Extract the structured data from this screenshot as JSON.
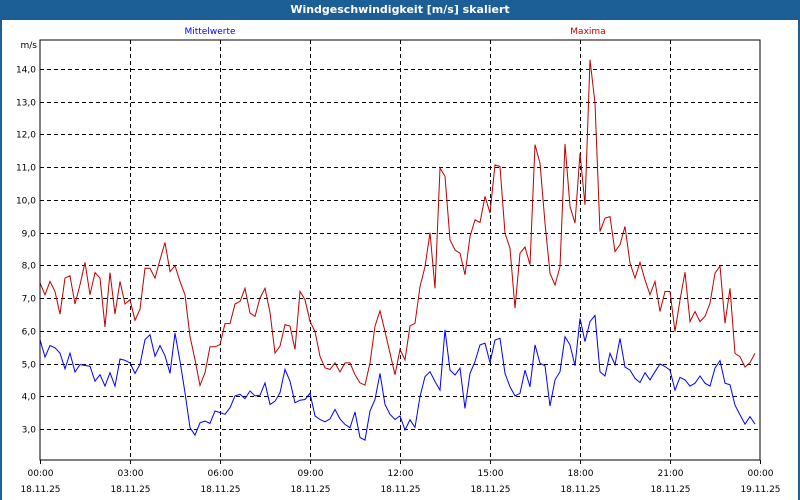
{
  "window": {
    "title": "Windgeschwindigkeit [m/s] skaliert"
  },
  "chart_data": {
    "type": "line",
    "title": "Windgeschwindigkeit [m/s] skaliert",
    "ylabel": "m/s",
    "ylim": [
      2.05,
      14.9
    ],
    "yticks": [
      "3,0",
      "4,0",
      "5,0",
      "6,0",
      "7,0",
      "8,0",
      "9,0",
      "10,0",
      "11,0",
      "12,0",
      "13,0",
      "14,0"
    ],
    "ytick_values": [
      3,
      4,
      5,
      6,
      7,
      8,
      9,
      10,
      11,
      12,
      13,
      14
    ],
    "xlim_hours": [
      0,
      24
    ],
    "xticks": [
      {
        "time": "00:00",
        "date": "18.11.25"
      },
      {
        "time": "03:00",
        "date": "18.11.25"
      },
      {
        "time": "06:00",
        "date": "18.11.25"
      },
      {
        "time": "09:00",
        "date": "18.11.25"
      },
      {
        "time": "12:00",
        "date": "18.11.25"
      },
      {
        "time": "15:00",
        "date": "18.11.25"
      },
      {
        "time": "18:00",
        "date": "18.11.25"
      },
      {
        "time": "21:00",
        "date": "18.11.25"
      },
      {
        "time": "00:00",
        "date": "19.11.25"
      }
    ],
    "grid": true,
    "sample_interval_minutes": 10,
    "series": [
      {
        "name": "Mittelwerte",
        "color": "#0000ff",
        "values": [
          5.73,
          5.2,
          5.55,
          5.48,
          5.32,
          4.84,
          5.32,
          4.74,
          4.97,
          4.94,
          4.92,
          4.46,
          4.66,
          4.31,
          4.72,
          4.31,
          5.14,
          5.1,
          5.02,
          4.7,
          4.97,
          5.73,
          5.88,
          5.22,
          5.55,
          5.24,
          4.7,
          5.93,
          5.07,
          4.11,
          3.04,
          2.81,
          3.19,
          3.24,
          3.17,
          3.55,
          3.5,
          3.45,
          3.65,
          4.01,
          4.06,
          3.93,
          4.16,
          4.01,
          4.03,
          4.41,
          3.75,
          3.85,
          4.11,
          4.82,
          4.46,
          3.8,
          3.88,
          3.9,
          4.09,
          3.4,
          3.29,
          3.22,
          3.31,
          3.6,
          3.31,
          3.14,
          3.04,
          3.52,
          2.74,
          2.66,
          3.55,
          3.9,
          4.7,
          3.75,
          3.45,
          3.29,
          3.4,
          2.97,
          3.28,
          3.05,
          3.99,
          4.6,
          4.75,
          4.45,
          4.19,
          6.03,
          4.8,
          4.65,
          4.86,
          3.63,
          4.7,
          5.06,
          5.57,
          5.62,
          5.03,
          5.72,
          5.77,
          4.7,
          4.29,
          4.01,
          4.09,
          4.8,
          4.29,
          5.57,
          5.01,
          4.93,
          3.7,
          4.5,
          4.75,
          5.82,
          5.57,
          4.93,
          6.38,
          5.67,
          6.28,
          6.47,
          4.75,
          4.62,
          5.31,
          4.96,
          5.77,
          4.89,
          4.8,
          4.55,
          4.42,
          4.72,
          4.5,
          4.75,
          4.99,
          4.91,
          4.8,
          4.19,
          4.58,
          4.5,
          4.31,
          4.4,
          4.62,
          4.4,
          4.31,
          4.86,
          5.09,
          4.4,
          4.35,
          3.73,
          3.43,
          3.15,
          3.38,
          3.15
        ]
      },
      {
        "name": "Maxima",
        "color": "#c00000",
        "values": [
          7.46,
          7.1,
          7.51,
          7.2,
          6.51,
          7.61,
          7.68,
          6.82,
          7.41,
          8.09,
          7.1,
          7.78,
          7.61,
          6.12,
          7.78,
          6.51,
          7.51,
          6.82,
          6.95,
          6.32,
          6.66,
          7.91,
          7.91,
          7.61,
          8.17,
          8.7,
          7.81,
          7.99,
          7.51,
          7.1,
          5.83,
          5.12,
          4.33,
          4.72,
          5.51,
          5.51,
          5.58,
          6.22,
          6.22,
          6.82,
          6.9,
          7.3,
          6.54,
          6.44,
          7.0,
          7.3,
          6.56,
          5.32,
          5.53,
          6.19,
          6.14,
          5.43,
          7.2,
          6.95,
          6.29,
          5.98,
          5.22,
          4.87,
          4.82,
          5.02,
          4.74,
          5.02,
          5.02,
          4.66,
          4.41,
          4.34,
          5.02,
          6.14,
          6.61,
          5.98,
          5.32,
          4.66,
          5.43,
          5.11,
          6.15,
          6.23,
          7.35,
          7.96,
          9.0,
          7.3,
          10.97,
          10.72,
          8.78,
          8.47,
          8.37,
          7.71,
          8.88,
          9.39,
          9.31,
          10.11,
          9.6,
          11.07,
          11.02,
          8.98,
          8.52,
          6.69,
          8.37,
          8.56,
          8.02,
          11.69,
          11.12,
          9.29,
          7.76,
          7.4,
          7.96,
          11.71,
          9.8,
          9.29,
          11.43,
          9.85,
          14.28,
          12.96,
          9.03,
          9.44,
          9.49,
          8.42,
          8.63,
          9.19,
          8.07,
          7.61,
          8.09,
          7.56,
          7.1,
          7.51,
          6.59,
          7.2,
          7.2,
          5.98,
          6.94,
          7.79,
          6.28,
          6.59,
          6.28,
          6.44,
          6.84,
          7.76,
          7.98,
          6.23,
          7.3,
          5.31,
          5.21,
          4.89,
          5.03,
          5.31
        ]
      }
    ]
  }
}
